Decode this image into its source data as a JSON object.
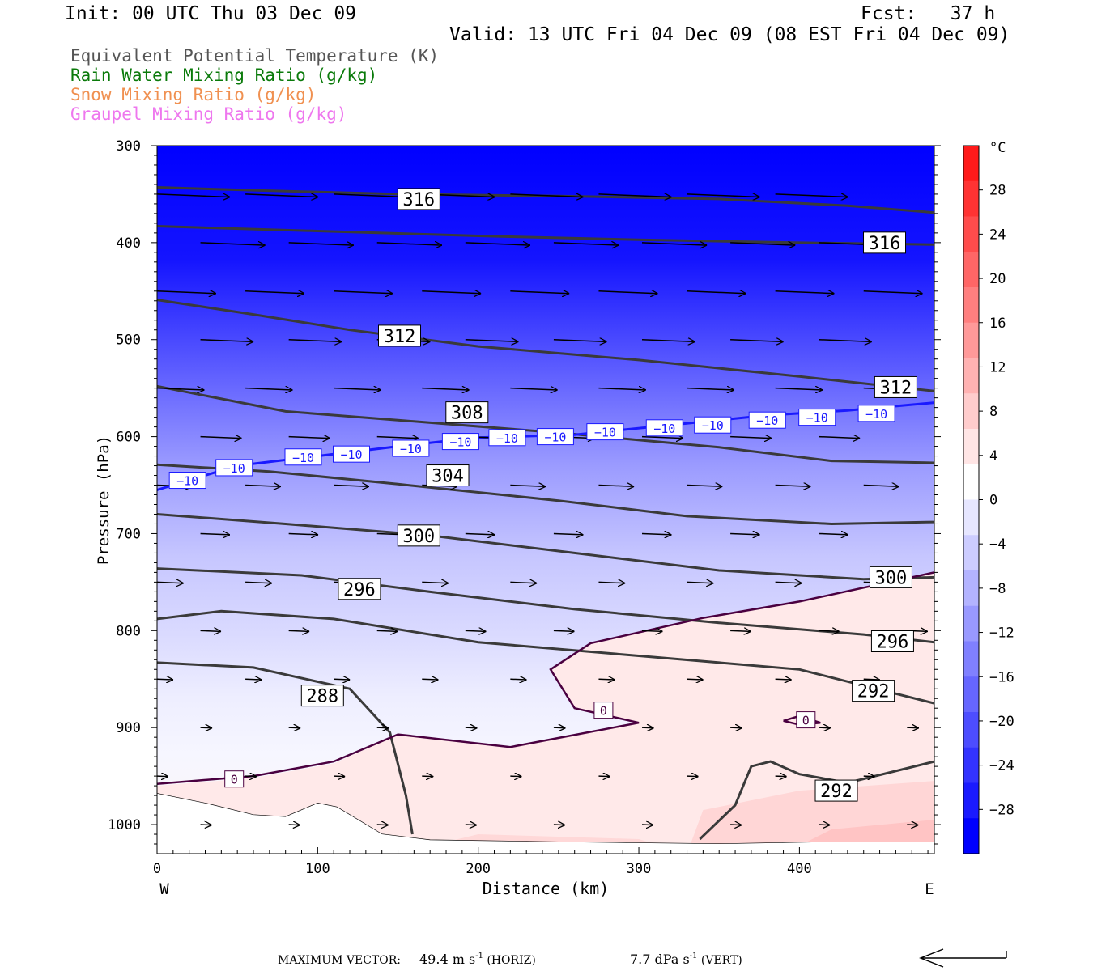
{
  "header": {
    "init": "Init: 00 UTC Thu 03 Dec 09",
    "fcst": "Fcst:   37 h",
    "valid": "Valid: 13 UTC Fri 04 Dec 09 (08 EST Fri 04 Dec 09)"
  },
  "legend": [
    {
      "text": "Equivalent Potential Temperature (K)",
      "color": "#555555"
    },
    {
      "text": "Rain Water Mixing Ratio (g/kg)",
      "color": "#0a7a0a"
    },
    {
      "text": "Snow Mixing Ratio (g/kg)",
      "color": "#f09050"
    },
    {
      "text": "Graupel Mixing Ratio (g/kg)",
      "color": "#ee77ee"
    }
  ],
  "footer": {
    "max_label": "MAXIMUM VECTOR:",
    "horiz_value": "49.4 m s",
    "horiz_suffix": " (HORIZ)",
    "vert_value": "7.7 dPa s",
    "vert_suffix": " (VERT)",
    "exp": "-1"
  },
  "chart_data": {
    "type": "cross-section contour",
    "xlabel": "Distance (km)",
    "ylabel": "Pressure (hPa)",
    "xlim": [
      0,
      484
    ],
    "ylim": [
      300,
      1030
    ],
    "x_ticks": [
      0,
      100,
      200,
      300,
      400
    ],
    "y_ticks": [
      300,
      400,
      500,
      600,
      700,
      800,
      900,
      1000
    ],
    "x_end_labels": {
      "left": "W",
      "right": "E"
    },
    "colorbar": {
      "unit": "°C",
      "labels": [
        "28",
        "24",
        "20",
        "16",
        "12",
        "8",
        "4",
        "0",
        "−4",
        "−8",
        "−12",
        "−16",
        "−20",
        "−24",
        "−28"
      ],
      "label_values": [
        28,
        24,
        20,
        16,
        12,
        8,
        4,
        0,
        -4,
        -8,
        -12,
        -16,
        -20,
        -24,
        -28
      ],
      "colors": [
        "#ff1a1a",
        "#ff3333",
        "#ff4c4c",
        "#ff6666",
        "#ff7f7f",
        "#ff9999",
        "#ffb2b2",
        "#ffcccc",
        "#ffe5e5",
        "#ffffff",
        "#e6e6ff",
        "#ccccff",
        "#b3b3ff",
        "#9999ff",
        "#8080ff",
        "#6666ff",
        "#4d4dff",
        "#3333ff",
        "#1a1aff",
        "#0000ff"
      ]
    },
    "theta_e_contours": [
      {
        "label": "316",
        "points": [
          [
            0,
            343
          ],
          [
            60,
            346
          ],
          [
            150,
            350
          ],
          [
            250,
            352
          ],
          [
            350,
            355
          ],
          [
            430,
            362
          ],
          [
            484,
            369
          ]
        ]
      },
      {
        "label": "316",
        "points": [
          [
            0,
            383
          ],
          [
            100,
            388
          ],
          [
            200,
            393
          ],
          [
            300,
            397
          ],
          [
            400,
            400
          ],
          [
            484,
            402
          ]
        ]
      },
      {
        "label": "312",
        "points": [
          [
            0,
            459
          ],
          [
            60,
            474
          ],
          [
            120,
            490
          ],
          [
            200,
            507
          ],
          [
            300,
            521
          ],
          [
            400,
            538
          ],
          [
            484,
            553
          ]
        ]
      },
      {
        "label": "308",
        "points": [
          [
            0,
            548
          ],
          [
            80,
            574
          ],
          [
            150,
            583
          ],
          [
            250,
            596
          ],
          [
            350,
            611
          ],
          [
            420,
            625
          ],
          [
            484,
            627
          ]
        ]
      },
      {
        "label": "304",
        "points": [
          [
            0,
            629
          ],
          [
            70,
            636
          ],
          [
            150,
            649
          ],
          [
            250,
            666
          ],
          [
            330,
            682
          ],
          [
            420,
            690
          ],
          [
            484,
            688
          ]
        ]
      },
      {
        "label": "300",
        "points": [
          [
            0,
            680
          ],
          [
            80,
            690
          ],
          [
            170,
            702
          ],
          [
            250,
            718
          ],
          [
            350,
            738
          ],
          [
            440,
            747
          ],
          [
            484,
            745
          ]
        ]
      },
      {
        "label": "296",
        "points": [
          [
            0,
            736
          ],
          [
            90,
            743
          ],
          [
            170,
            760
          ],
          [
            260,
            778
          ],
          [
            350,
            792
          ],
          [
            440,
            804
          ],
          [
            484,
            812
          ]
        ]
      },
      {
        "label": "292",
        "points": [
          [
            0,
            788
          ],
          [
            40,
            780
          ],
          [
            110,
            788
          ],
          [
            200,
            812
          ],
          [
            300,
            826
          ],
          [
            400,
            840
          ],
          [
            484,
            875
          ]
        ]
      },
      {
        "label": "288",
        "points": [
          [
            0,
            833
          ],
          [
            60,
            838
          ],
          [
            120,
            860
          ],
          [
            145,
            905
          ],
          [
            155,
            970
          ],
          [
            159,
            1010
          ]
        ]
      },
      {
        "label": "292",
        "points": [
          [
            338,
            1015
          ],
          [
            360,
            980
          ],
          [
            370,
            940
          ],
          [
            382,
            935
          ],
          [
            400,
            948
          ],
          [
            430,
            957
          ],
          [
            484,
            935
          ]
        ]
      }
    ],
    "isotherms": [
      {
        "label": "−10",
        "points": [
          [
            0,
            655
          ],
          [
            50,
            630
          ],
          [
            100,
            620
          ],
          [
            150,
            610
          ],
          [
            200,
            601
          ],
          [
            260,
            598
          ],
          [
            320,
            588
          ],
          [
            380,
            578
          ],
          [
            430,
            573
          ],
          [
            484,
            565
          ]
        ]
      },
      {
        "label": "0",
        "points": [
          [
            0,
            958
          ],
          [
            60,
            950
          ],
          [
            110,
            935
          ],
          [
            150,
            907
          ],
          [
            220,
            920
          ],
          [
            300,
            895
          ],
          [
            260,
            880
          ],
          [
            245,
            840
          ],
          [
            270,
            813
          ],
          [
            340,
            787
          ],
          [
            400,
            770
          ],
          [
            484,
            740
          ]
        ]
      },
      {
        "label": "0",
        "points": [
          [
            390,
            893
          ],
          [
            400,
            888
          ],
          [
            413,
            895
          ],
          [
            400,
            897
          ],
          [
            390,
            893
          ]
        ]
      }
    ],
    "wind_vectors": [
      {
        "p": 350,
        "speed": 49.4
      },
      {
        "p": 400,
        "speed": 44
      },
      {
        "p": 450,
        "speed": 40
      },
      {
        "p": 500,
        "speed": 36
      },
      {
        "p": 550,
        "speed": 32
      },
      {
        "p": 600,
        "speed": 28
      },
      {
        "p": 650,
        "speed": 24
      },
      {
        "p": 700,
        "speed": 20
      },
      {
        "p": 750,
        "speed": 18
      },
      {
        "p": 800,
        "speed": 14
      },
      {
        "p": 850,
        "speed": 11
      },
      {
        "p": 900,
        "speed": 8
      },
      {
        "p": 950,
        "speed": 6
      },
      {
        "p": 1000,
        "speed": 4
      }
    ]
  }
}
